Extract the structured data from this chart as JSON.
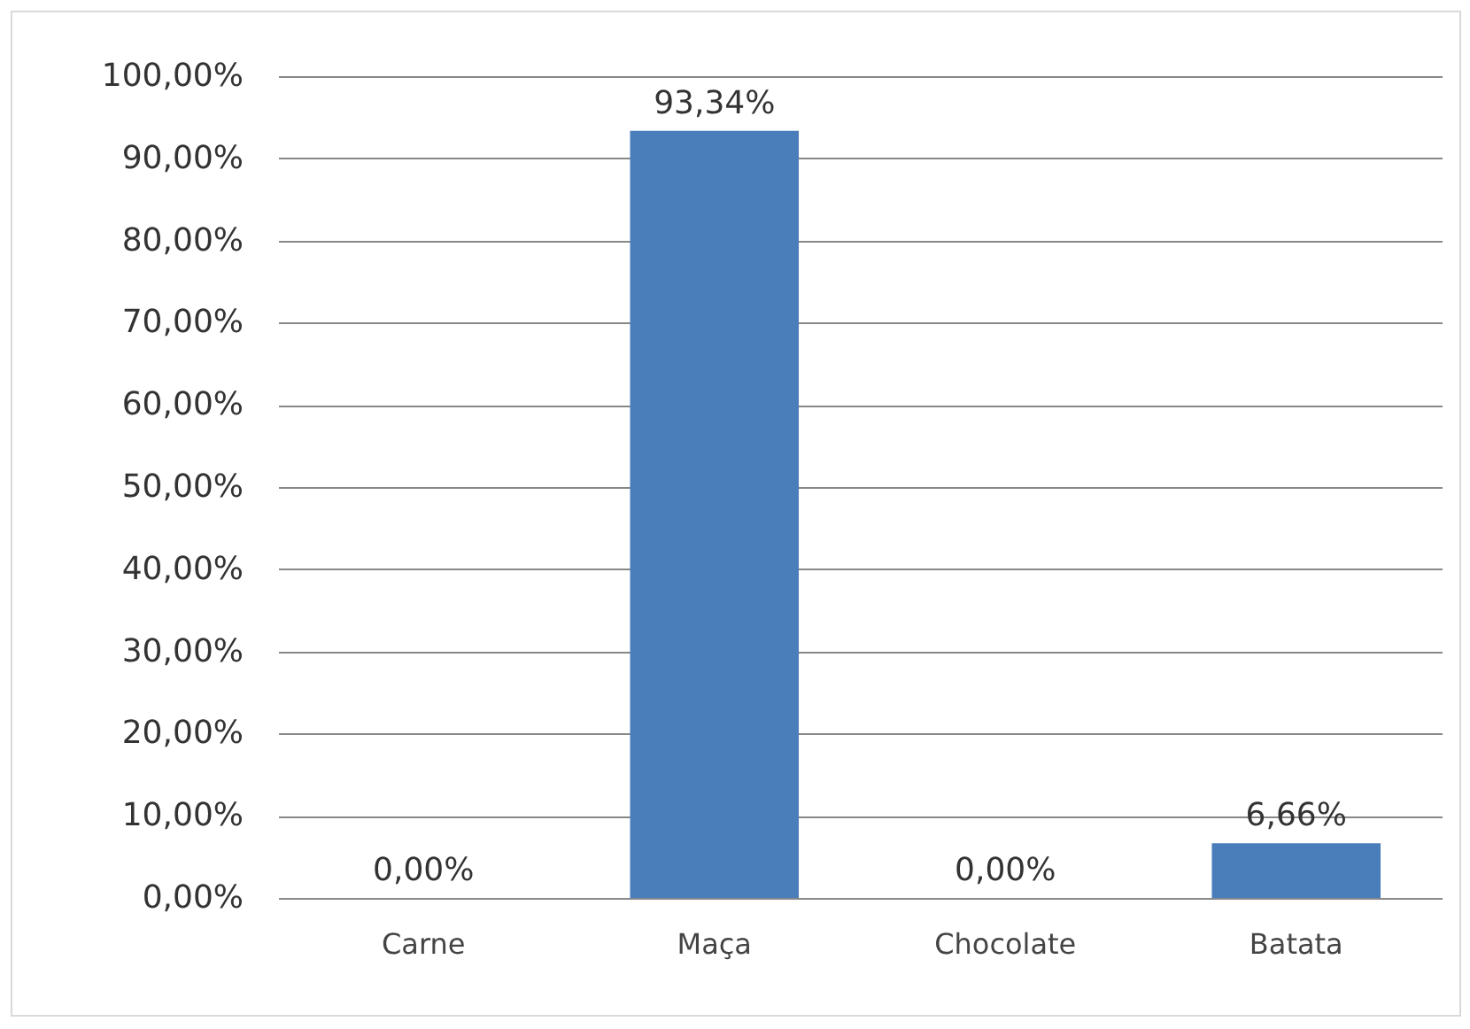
{
  "chart_data": {
    "type": "bar",
    "categories": [
      "Carne",
      "Maça",
      "Chocolate",
      "Batata"
    ],
    "values": [
      0,
      93.34,
      0,
      6.66
    ],
    "value_labels": [
      "0,00%",
      "93,34%",
      "0,00%",
      "6,66%"
    ],
    "color": "#4a7ebb",
    "ylim": [
      0,
      100
    ],
    "yticks": [
      {
        "value": 0,
        "label": "0,00%"
      },
      {
        "value": 10,
        "label": "10,00%"
      },
      {
        "value": 20,
        "label": "20,00%"
      },
      {
        "value": 30,
        "label": "30,00%"
      },
      {
        "value": 40,
        "label": "40,00%"
      },
      {
        "value": 50,
        "label": "50,00%"
      },
      {
        "value": 60,
        "label": "60,00%"
      },
      {
        "value": 70,
        "label": "70,00%"
      },
      {
        "value": 80,
        "label": "80,00%"
      },
      {
        "value": 90,
        "label": "90,00%"
      },
      {
        "value": 100,
        "label": "100,00%"
      }
    ],
    "grid": "y"
  }
}
